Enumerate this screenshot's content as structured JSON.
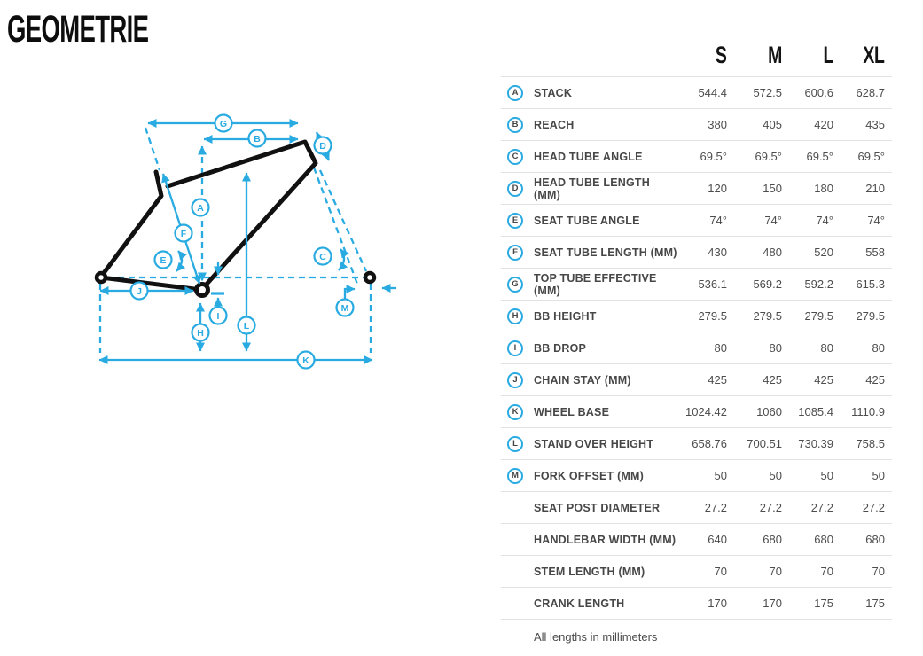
{
  "title": "GEOMETRIE",
  "table": {
    "size_headers": [
      "S",
      "M",
      "L",
      "XL"
    ],
    "rows": [
      {
        "letter": "A",
        "label": "STACK",
        "values": [
          "544.4",
          "572.5",
          "600.6",
          "628.7"
        ]
      },
      {
        "letter": "B",
        "label": "REACH",
        "values": [
          "380",
          "405",
          "420",
          "435"
        ]
      },
      {
        "letter": "C",
        "label": "HEAD TUBE ANGLE",
        "values": [
          "69.5°",
          "69.5°",
          "69.5°",
          "69.5°"
        ]
      },
      {
        "letter": "D",
        "label": "HEAD TUBE LENGTH (MM)",
        "values": [
          "120",
          "150",
          "180",
          "210"
        ]
      },
      {
        "letter": "E",
        "label": "SEAT TUBE ANGLE",
        "values": [
          "74°",
          "74°",
          "74°",
          "74°"
        ]
      },
      {
        "letter": "F",
        "label": "SEAT TUBE LENGTH (MM)",
        "values": [
          "430",
          "480",
          "520",
          "558"
        ]
      },
      {
        "letter": "G",
        "label": "TOP TUBE EFFECTIVE (MM)",
        "values": [
          "536.1",
          "569.2",
          "592.2",
          "615.3"
        ]
      },
      {
        "letter": "H",
        "label": "BB HEIGHT",
        "values": [
          "279.5",
          "279.5",
          "279.5",
          "279.5"
        ]
      },
      {
        "letter": "I",
        "label": "BB DROP",
        "values": [
          "80",
          "80",
          "80",
          "80"
        ]
      },
      {
        "letter": "J",
        "label": "CHAIN STAY (MM)",
        "values": [
          "425",
          "425",
          "425",
          "425"
        ]
      },
      {
        "letter": "K",
        "label": "WHEEL BASE",
        "values": [
          "1024.42",
          "1060",
          "1085.4",
          "1110.9"
        ]
      },
      {
        "letter": "L",
        "label": "STAND OVER HEIGHT",
        "values": [
          "658.76",
          "700.51",
          "730.39",
          "758.5"
        ]
      },
      {
        "letter": "M",
        "label": "FORK OFFSET (MM)",
        "values": [
          "50",
          "50",
          "50",
          "50"
        ]
      },
      {
        "letter": "",
        "label": "SEAT POST DIAMETER",
        "values": [
          "27.2",
          "27.2",
          "27.2",
          "27.2"
        ]
      },
      {
        "letter": "",
        "label": "HANDLEBAR WIDTH (MM)",
        "values": [
          "640",
          "680",
          "680",
          "680"
        ]
      },
      {
        "letter": "",
        "label": "STEM LENGTH (MM)",
        "values": [
          "70",
          "70",
          "70",
          "70"
        ]
      },
      {
        "letter": "",
        "label": "CRANK LENGTH",
        "values": [
          "170",
          "170",
          "175",
          "175"
        ]
      }
    ],
    "footnote": "All lengths in millimeters"
  },
  "diagram": {
    "badges": [
      "A",
      "B",
      "C",
      "D",
      "E",
      "F",
      "G",
      "H",
      "I",
      "J",
      "K",
      "L",
      "M"
    ],
    "colors": {
      "accent": "#29abe2",
      "frame": "#111111"
    }
  }
}
